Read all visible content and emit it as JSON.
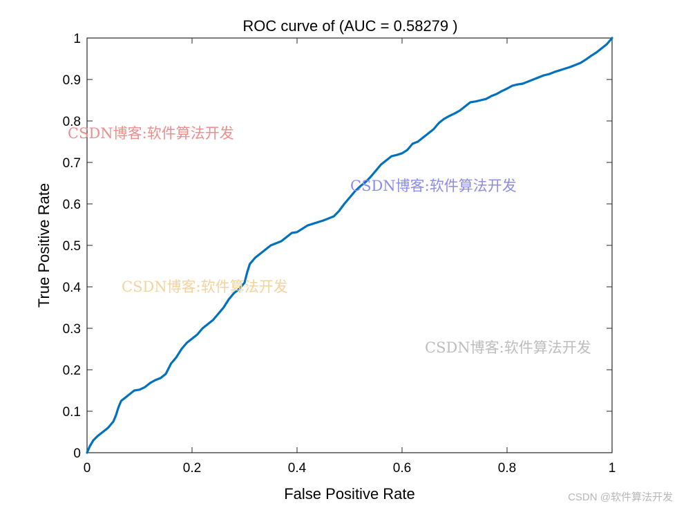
{
  "chart_data": {
    "type": "line",
    "title": "ROC curve of (AUC = 0.58279 )",
    "xlabel": "False Positive Rate",
    "ylabel": "True Positive Rate",
    "xlim": [
      0,
      1
    ],
    "ylim": [
      0,
      1
    ],
    "xticks": [
      "0",
      "0.2",
      "0.4",
      "0.6",
      "0.8",
      "1"
    ],
    "yticks": [
      "0",
      "0.1",
      "0.2",
      "0.3",
      "0.4",
      "0.5",
      "0.6",
      "0.7",
      "0.8",
      "0.9",
      "1"
    ],
    "grid": false,
    "series": [
      {
        "color": "#0072bd",
        "x": [
          0,
          0.005,
          0.012,
          0.02,
          0.03,
          0.04,
          0.05,
          0.055,
          0.06,
          0.065,
          0.07,
          0.08,
          0.09,
          0.1,
          0.11,
          0.12,
          0.13,
          0.14,
          0.15,
          0.16,
          0.17,
          0.18,
          0.19,
          0.2,
          0.21,
          0.22,
          0.23,
          0.24,
          0.25,
          0.26,
          0.27,
          0.28,
          0.29,
          0.3,
          0.305,
          0.31,
          0.32,
          0.33,
          0.34,
          0.35,
          0.36,
          0.37,
          0.38,
          0.39,
          0.4,
          0.41,
          0.42,
          0.43,
          0.44,
          0.45,
          0.46,
          0.47,
          0.48,
          0.49,
          0.5,
          0.51,
          0.52,
          0.53,
          0.54,
          0.55,
          0.56,
          0.57,
          0.58,
          0.59,
          0.6,
          0.61,
          0.62,
          0.63,
          0.64,
          0.65,
          0.66,
          0.67,
          0.68,
          0.69,
          0.7,
          0.71,
          0.72,
          0.73,
          0.74,
          0.75,
          0.76,
          0.77,
          0.78,
          0.79,
          0.8,
          0.81,
          0.82,
          0.83,
          0.84,
          0.85,
          0.86,
          0.87,
          0.88,
          0.89,
          0.9,
          0.91,
          0.92,
          0.93,
          0.94,
          0.95,
          0.96,
          0.97,
          0.98,
          0.99,
          1.0
        ],
        "y": [
          0,
          0.015,
          0.03,
          0.04,
          0.05,
          0.06,
          0.075,
          0.09,
          0.11,
          0.125,
          0.13,
          0.14,
          0.15,
          0.152,
          0.158,
          0.168,
          0.175,
          0.18,
          0.19,
          0.215,
          0.23,
          0.25,
          0.265,
          0.275,
          0.285,
          0.3,
          0.31,
          0.32,
          0.335,
          0.35,
          0.37,
          0.385,
          0.395,
          0.41,
          0.435,
          0.455,
          0.47,
          0.48,
          0.49,
          0.5,
          0.505,
          0.51,
          0.52,
          0.53,
          0.532,
          0.54,
          0.548,
          0.552,
          0.556,
          0.56,
          0.565,
          0.57,
          0.583,
          0.6,
          0.615,
          0.63,
          0.642,
          0.652,
          0.665,
          0.68,
          0.695,
          0.705,
          0.715,
          0.718,
          0.722,
          0.73,
          0.745,
          0.75,
          0.76,
          0.77,
          0.78,
          0.795,
          0.805,
          0.812,
          0.818,
          0.825,
          0.835,
          0.845,
          0.847,
          0.85,
          0.853,
          0.86,
          0.865,
          0.872,
          0.878,
          0.885,
          0.888,
          0.89,
          0.895,
          0.9,
          0.905,
          0.91,
          0.913,
          0.918,
          0.922,
          0.926,
          0.93,
          0.935,
          0.94,
          0.948,
          0.957,
          0.965,
          0.975,
          0.985,
          1.0
        ]
      }
    ]
  },
  "watermarks": [
    {
      "text": "CSDN博客:软件算法开发",
      "color": "#f08c8c"
    },
    {
      "text": "CSDN博客:软件算法开发",
      "color": "#8b8bf0"
    },
    {
      "text": "CSDN博客:软件算法开发",
      "color": "#f5d29b"
    },
    {
      "text": "CSDN博客:软件算法开发",
      "color": "#bdbdbd"
    }
  ],
  "footer": {
    "text": "CSDN @软件算法开发"
  }
}
